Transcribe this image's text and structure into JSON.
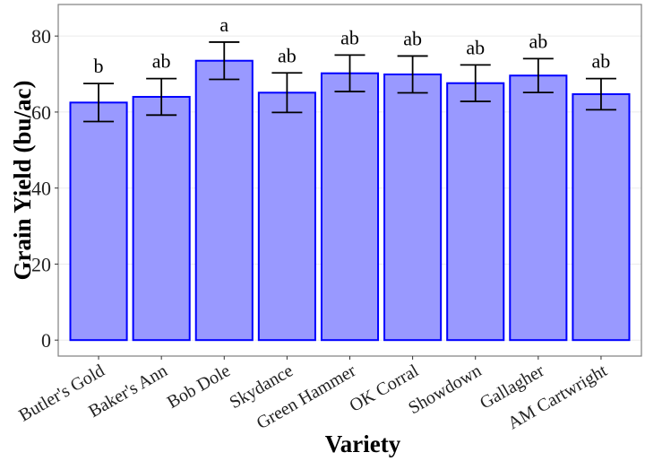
{
  "chart_data": {
    "type": "bar",
    "title": "",
    "xlabel": "Variety",
    "ylabel": "Grain Yield (bu/ac)",
    "ylim": [
      -4.2,
      88.3
    ],
    "yticks": [
      0,
      20,
      40,
      60,
      80
    ],
    "grid": true,
    "categories": [
      "Butler's Gold",
      "Baker's Ann",
      "Bob Dole",
      "Skydance",
      "Green Hammer",
      "OK Corral",
      "Showdown",
      "Gallagher",
      "AM Cartwright"
    ],
    "values": [
      62.5,
      64.0,
      73.5,
      65.1,
      70.2,
      69.9,
      67.6,
      69.6,
      64.7
    ],
    "error": [
      5.0,
      4.8,
      4.9,
      5.2,
      4.8,
      4.85,
      4.8,
      4.45,
      4.1
    ],
    "letters": [
      "b",
      "ab",
      "a",
      "ab",
      "ab",
      "ab",
      "ab",
      "ab",
      "ab"
    ],
    "colors": {
      "fill": "#9999ff",
      "stroke": "#0000ff",
      "error": "#000000",
      "grid": "#ebebeb",
      "panel_border": "#7f7f7f"
    }
  }
}
